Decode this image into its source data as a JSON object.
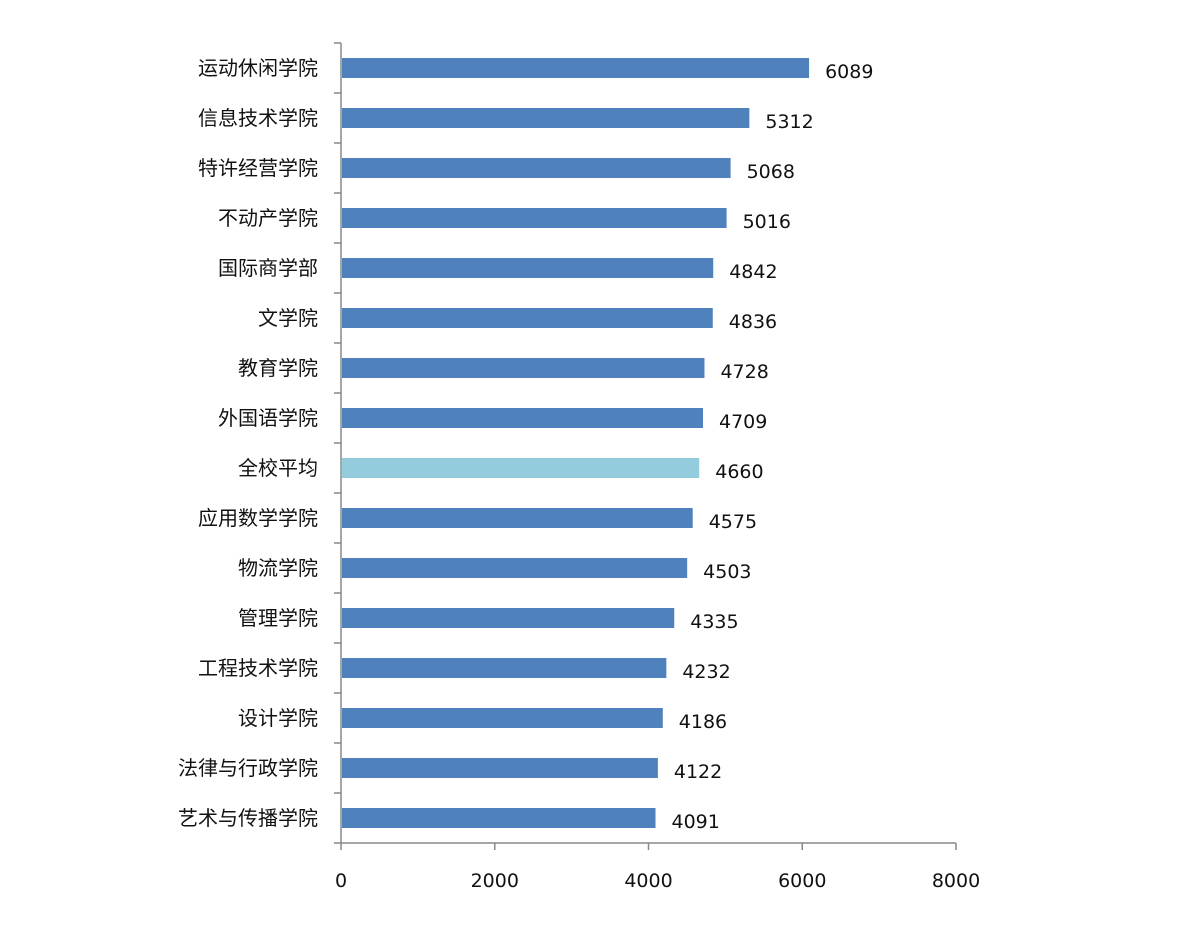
{
  "chart_data": {
    "type": "bar",
    "orientation": "horizontal",
    "categories": [
      "运动休闲学院",
      "信息技术学院",
      "特许经营学院",
      "不动产学院",
      "国际商学部",
      "文学院",
      "教育学院",
      "外国语学院",
      "全校平均",
      "应用数学学院",
      "物流学院",
      "管理学院",
      "工程技术学院",
      "设计学院",
      "法律与行政学院",
      "艺术与传播学院"
    ],
    "values": [
      6089,
      5312,
      5068,
      5016,
      4842,
      4836,
      4728,
      4709,
      4660,
      4575,
      4503,
      4335,
      4232,
      4186,
      4122,
      4091
    ],
    "data_labels": [
      "6089",
      "5312",
      "5068",
      "5016",
      "4842",
      "4836",
      "4728",
      "4709",
      "4660",
      "4575",
      "4503",
      "4335",
      "4232",
      "4186",
      "4122",
      "4091"
    ],
    "highlight_category": "全校平均",
    "xlim": [
      0,
      8000
    ],
    "x_ticks": [
      0,
      2000,
      4000,
      6000,
      8000
    ],
    "x_tick_labels": [
      "0",
      "2000",
      "4000",
      "6000",
      "8000"
    ],
    "grid": false,
    "legend": "none",
    "colors": {
      "bar": "#4F81BD",
      "highlight": "#93CDDD",
      "axis": "#888888"
    }
  }
}
